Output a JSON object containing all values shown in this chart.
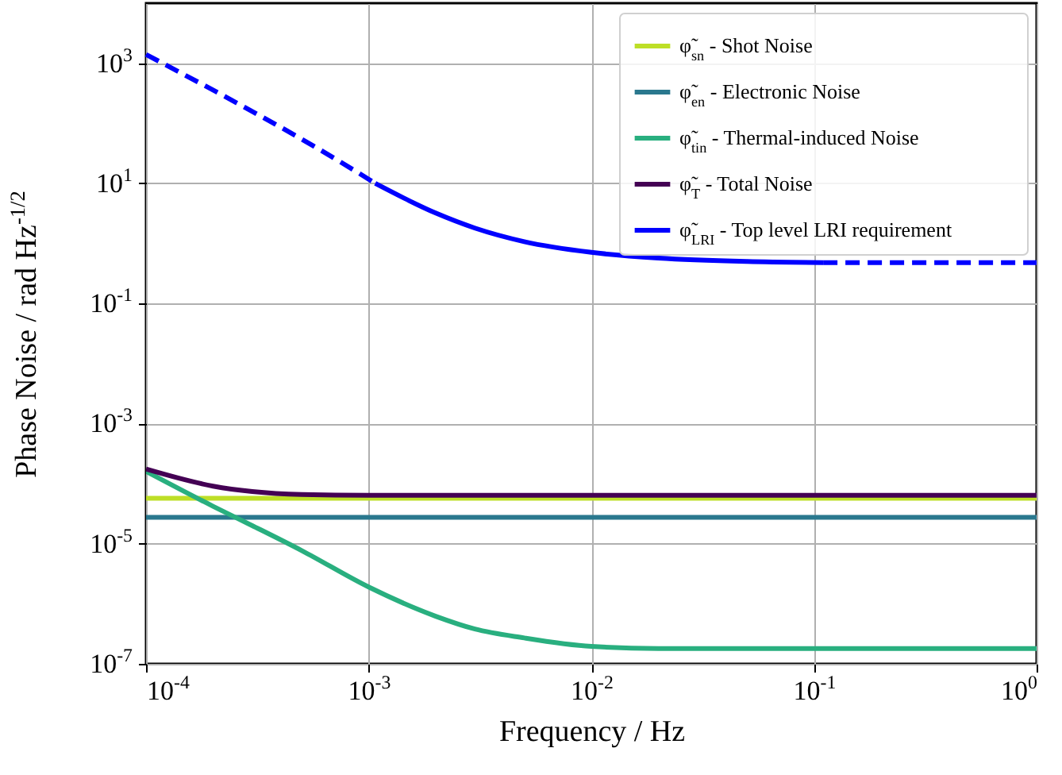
{
  "chart_data": {
    "type": "line",
    "xlabel": "Frequency / Hz",
    "ylabel": "Phase Noise / rad Hz$^{-1/2}$",
    "log": "xy",
    "grid": true,
    "legend": "top right",
    "line_style": "solid",
    "xlim": [
      0.0001,
      1
    ],
    "xticks": [
      {
        "value": 0.0001,
        "label": "10$^{-4}$"
      },
      {
        "value": 0.001,
        "label": "10$^{-3}$"
      },
      {
        "value": 0.01,
        "label": "10$^{-2}$"
      },
      {
        "value": 0.1,
        "label": "10$^{-1}$"
      },
      {
        "value": 1,
        "label": "10$^{0}$"
      }
    ],
    "ylim": [
      1e-07,
      10000
    ],
    "yticks": [
      {
        "value": 1e-07,
        "label": "10$^{-7}$"
      },
      {
        "value": 1e-05,
        "label": "10$^{-5}$"
      },
      {
        "value": 0.001,
        "label": "10$^{-3}$"
      },
      {
        "value": 0.1,
        "label": "10$^{-1}$"
      },
      {
        "value": 10,
        "label": "10$^{1}$"
      },
      {
        "value": 1000,
        "label": "10$^{3}$"
      }
    ],
    "series": [
      {
        "name": "φ̃$_{sn}$ - Shot Noise",
        "color": "#bddf26",
        "x": [
          0.0001,
          1
        ],
        "values": [
          5.7e-05,
          5.7e-05
        ]
      },
      {
        "name": "φ̃$_{en}$ - Electronic Noise",
        "color": "#2a788e",
        "x": [
          0.0001,
          1
        ],
        "values": [
          2.75e-05,
          2.75e-05
        ]
      },
      {
        "name": "φ̃$_{tin}$ - Thermal-induced Noise",
        "color": "#29af7f",
        "x": [
          0.0001,
          0.0002,
          0.0003,
          0.0005,
          0.001,
          0.002,
          0.003,
          0.005,
          0.01,
          0.02,
          0.05,
          1
        ],
        "values": [
          0.00016,
          4.2e-05,
          2e-05,
          7.7e-06,
          1.9e-06,
          6.2e-07,
          3.8e-07,
          2.7e-07,
          1.95e-07,
          1.8e-07,
          1.8e-07,
          1.8e-07
        ]
      },
      {
        "name": "φ̃$_{T}$ - Total Noise",
        "color": "#440154",
        "x": [
          0.0001,
          0.0002,
          0.0003,
          0.0005,
          0.001,
          1
        ],
        "values": [
          0.000175,
          9.1e-05,
          7.4e-05,
          6.6e-05,
          6.4e-05,
          6.4e-05
        ]
      },
      {
        "color": "#0000ff",
        "line_style": "dashed",
        "x": [
          0.0001,
          0.001,
          0.00107
        ],
        "values": [
          1400,
          11.7,
          10
        ]
      },
      {
        "name": "φ̃$_{LRI}$ - Top level LRI requirement",
        "color": "#0000ff",
        "x": [
          0.00107,
          0.002,
          0.003,
          0.005,
          0.01,
          0.02,
          0.05,
          0.11
        ],
        "values": [
          10,
          3.2,
          1.8,
          1.07,
          0.71,
          0.57,
          0.5,
          0.48
        ]
      },
      {
        "color": "#0000ff",
        "line_style": "dashed",
        "x": [
          0.11,
          1
        ],
        "values": [
          0.48,
          0.48
        ]
      }
    ]
  }
}
